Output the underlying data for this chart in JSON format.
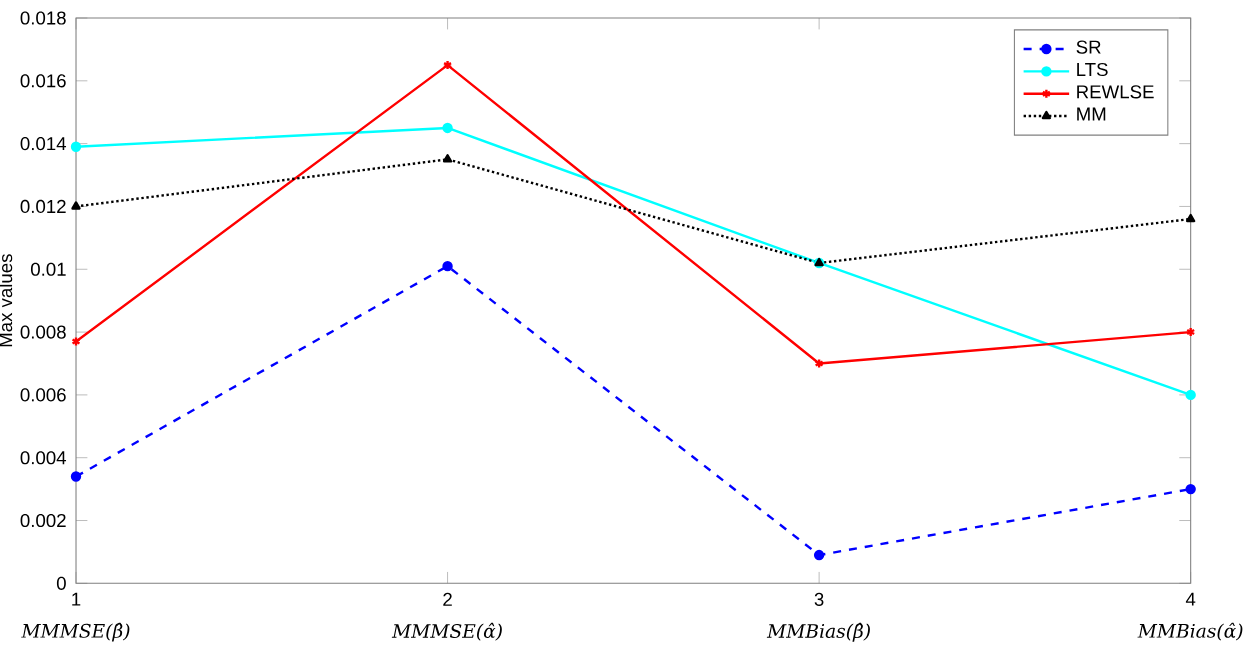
{
  "chart_data": {
    "type": "line",
    "ylabel": "Max values",
    "x": [
      1,
      2,
      3,
      4
    ],
    "xlim": [
      1,
      4
    ],
    "xticks": [
      1,
      2,
      3,
      4
    ],
    "ylim": [
      0,
      0.018
    ],
    "yticks": [
      0,
      0.002,
      0.004,
      0.006,
      0.008,
      0.01,
      0.012,
      0.014,
      0.016,
      0.018
    ],
    "annotations": [
      "MMMSE(β̂)",
      "MMMSE(α̂)",
      "MMBias(β̂)",
      "MMBias(α̂)"
    ],
    "legend": "top right",
    "grid": false,
    "series": [
      {
        "name": "SR",
        "color": "#0000ff",
        "values": [
          0.0034,
          0.0101,
          0.0009,
          0.003
        ],
        "marker": "circle",
        "line_style": "dashed"
      },
      {
        "name": "LTS",
        "color": "#00ffff",
        "values": [
          0.0139,
          0.0145,
          0.0102,
          0.006
        ],
        "marker": "circle",
        "line_style": "solid"
      },
      {
        "name": "REWLSE",
        "color": "#ff0000",
        "values": [
          0.0077,
          0.0165,
          0.007,
          0.008
        ],
        "marker": "cross",
        "line_style": "solid"
      },
      {
        "name": "MM",
        "color": "#000000",
        "values": [
          0.012,
          0.0135,
          0.0102,
          0.0116
        ],
        "marker": "triangle",
        "line_style": "dotted"
      }
    ]
  }
}
